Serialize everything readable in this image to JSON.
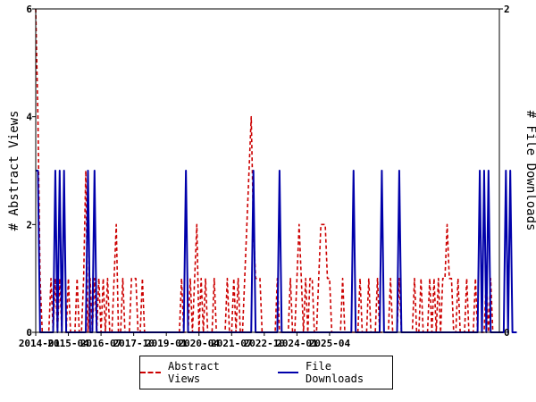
{
  "chart_data": {
    "type": "line",
    "x_start": "2014-01",
    "x_step": "1 month",
    "x_ticks": [
      "2014-01",
      "2015-04",
      "2016-07",
      "2017-10",
      "2019-01",
      "2020-04",
      "2021-07",
      "2022-10",
      "2024-01",
      "2025-04"
    ],
    "y_left": {
      "label": "# Abstract Views",
      "ylim": [
        0,
        6
      ],
      "ticks": [
        "0",
        "2",
        "4",
        "6"
      ]
    },
    "y_right": {
      "label": "# File Downloads",
      "ylim": [
        0,
        2
      ],
      "ticks": [
        "0",
        "2"
      ]
    },
    "series": [
      {
        "name": "Abstract Views",
        "axis": "left",
        "color": "#cc0000",
        "style": "dashed",
        "values": [
          6,
          4,
          1,
          0,
          0,
          0,
          0,
          1,
          0,
          1,
          0,
          1,
          0,
          0,
          0,
          1,
          0,
          0,
          0,
          1,
          0,
          0,
          1,
          3,
          0,
          1,
          0,
          1,
          0,
          1,
          0,
          1,
          0,
          1,
          0,
          0,
          1,
          2,
          0,
          0,
          1,
          0,
          0,
          0,
          1,
          1,
          1,
          0,
          0,
          1,
          0,
          0,
          0,
          0,
          0,
          0,
          0,
          0,
          0,
          0,
          0,
          0,
          0,
          0,
          0,
          0,
          0,
          1,
          0,
          0,
          0,
          1,
          0,
          1,
          2,
          0,
          1,
          0,
          1,
          0,
          0,
          0,
          1,
          0,
          0,
          0,
          0,
          0,
          1,
          0,
          0,
          1,
          0,
          1,
          0,
          0,
          1,
          2,
          3,
          4,
          2,
          1,
          1,
          1,
          0,
          0,
          0,
          0,
          0,
          0,
          0,
          1,
          0,
          0,
          0,
          0,
          0,
          1,
          0,
          0,
          1,
          2,
          1,
          0,
          1,
          0,
          1,
          1,
          0,
          0,
          1,
          2,
          2,
          2,
          1,
          1,
          0,
          0,
          0,
          0,
          0,
          1,
          0,
          0,
          0,
          0,
          0,
          0,
          0,
          1,
          0,
          0,
          0,
          1,
          0,
          0,
          0,
          1,
          0,
          0,
          0,
          0,
          0,
          1,
          0,
          0,
          0,
          1,
          0,
          0,
          0,
          0,
          0,
          0,
          1,
          0,
          0,
          1,
          0,
          0,
          0,
          1,
          0,
          1,
          0,
          1,
          0,
          1,
          1,
          2,
          1,
          1,
          0,
          0,
          1,
          0,
          0,
          0,
          1,
          0,
          0,
          0,
          1,
          0,
          0,
          0,
          0,
          1,
          0,
          1,
          0,
          0,
          0,
          0
        ]
      },
      {
        "name": "File Downloads",
        "axis": "right",
        "color": "#0000aa",
        "style": "solid",
        "values": [
          1,
          1,
          0,
          0,
          0,
          0,
          0,
          0,
          0,
          1,
          0,
          1,
          0,
          1,
          0,
          0,
          0,
          0,
          0,
          0,
          0,
          0,
          0,
          0,
          1,
          0,
          0,
          1,
          0,
          0,
          0,
          0,
          0,
          0,
          0,
          0,
          0,
          0,
          0,
          0,
          0,
          0,
          0,
          0,
          0,
          0,
          0,
          0,
          0,
          0,
          0,
          0,
          0,
          0,
          0,
          0,
          0,
          0,
          0,
          0,
          0,
          0,
          0,
          0,
          0,
          0,
          0,
          0,
          0,
          1,
          0,
          0,
          0,
          0,
          0,
          0,
          0,
          0,
          0,
          0,
          0,
          0,
          0,
          0,
          0,
          0,
          0,
          0,
          0,
          0,
          0,
          0,
          0,
          0,
          0,
          0,
          0,
          0,
          0,
          0,
          1,
          0,
          0,
          0,
          0,
          0,
          0,
          0,
          0,
          0,
          0,
          0,
          1,
          0,
          0,
          0,
          0,
          0,
          0,
          0,
          0,
          0,
          0,
          0,
          0,
          0,
          0,
          0,
          0,
          0,
          0,
          0,
          0,
          0,
          0,
          0,
          0,
          0,
          0,
          0,
          0,
          0,
          0,
          0,
          0,
          0,
          1,
          0,
          0,
          0,
          0,
          0,
          0,
          0,
          0,
          0,
          0,
          0,
          0,
          1,
          0,
          0,
          0,
          0,
          0,
          0,
          0,
          1,
          0,
          0,
          0,
          0,
          0,
          0,
          0,
          0,
          0,
          0,
          0,
          0,
          0,
          0,
          0,
          0,
          0,
          0,
          0,
          0,
          0,
          0,
          0,
          0,
          0,
          0,
          0,
          0,
          0,
          0,
          0,
          0,
          0,
          0,
          0,
          0,
          1,
          0,
          1,
          0,
          1,
          0,
          0,
          0,
          0,
          0,
          0,
          0,
          1,
          0,
          1,
          0,
          0,
          0
        ]
      }
    ],
    "grid": false,
    "legend_position": "bottom"
  }
}
